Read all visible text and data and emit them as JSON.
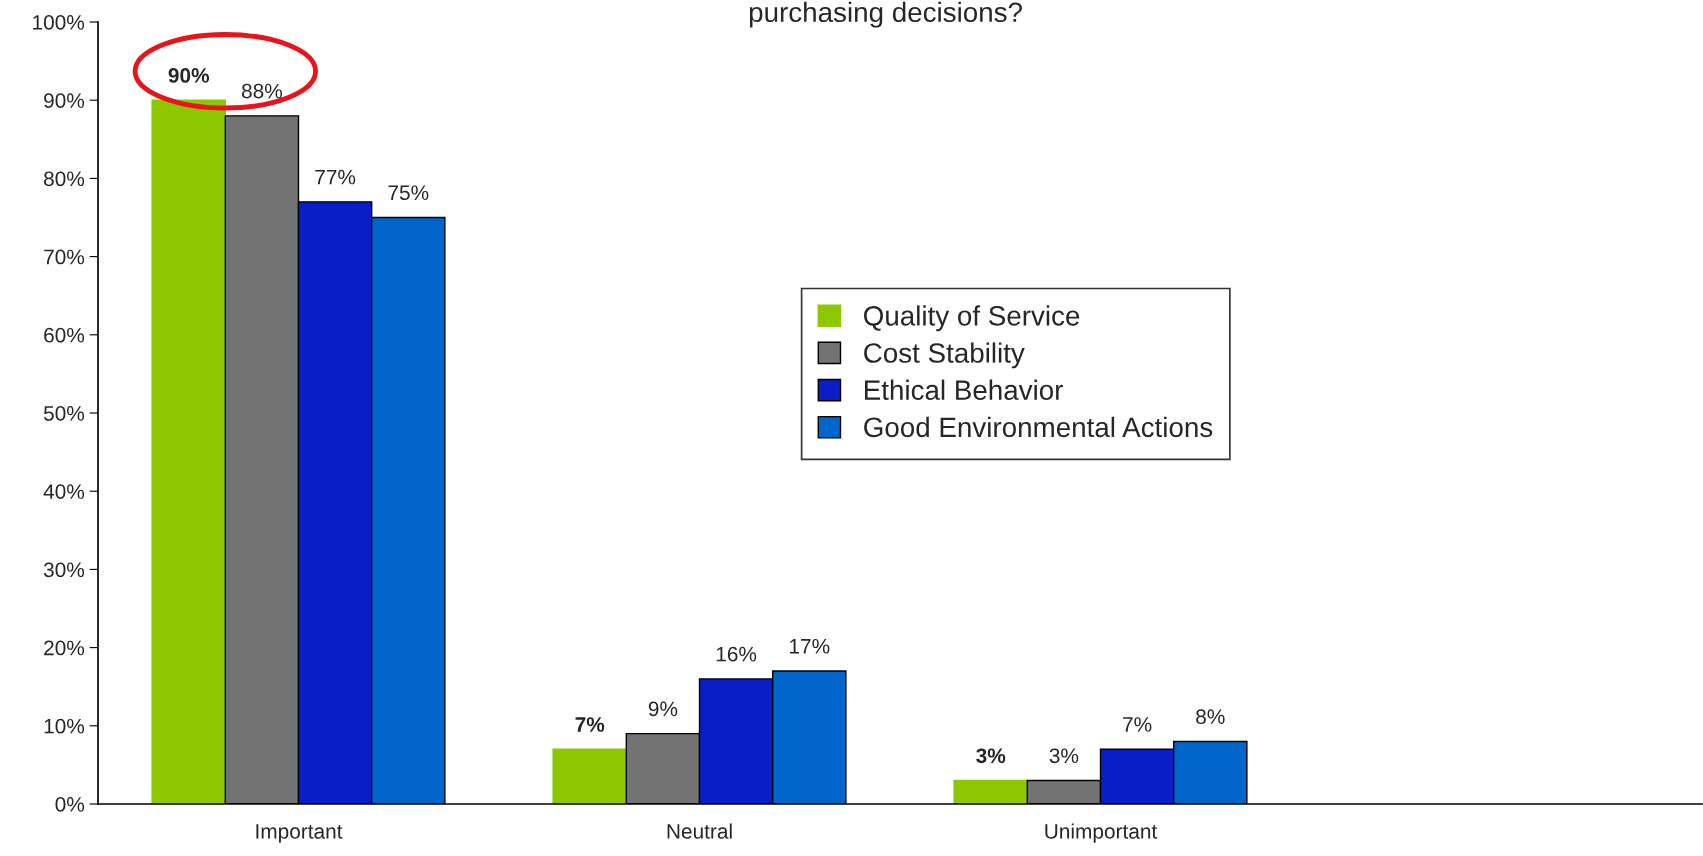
{
  "chart_data": {
    "type": "bar",
    "title": "purchasing decisions?",
    "categories": [
      "Important",
      "Neutral",
      "Unimportant",
      null
    ],
    "series": [
      {
        "name": "Quality of Service",
        "color": "#8dc700",
        "values": [
          90,
          7,
          3,
          null
        ],
        "value_labels": [
          "90%",
          "7%",
          "3%",
          null
        ]
      },
      {
        "name": "Cost Stability",
        "color": "#737373",
        "values": [
          88,
          9,
          3,
          null
        ],
        "value_labels": [
          "88%",
          "9%",
          "3%",
          null
        ]
      },
      {
        "name": "Ethical Behavior",
        "color": "#0a1ec8",
        "values": [
          77,
          16,
          7,
          null
        ],
        "value_labels": [
          "77%",
          "16%",
          "7%",
          null
        ]
      },
      {
        "name": "Good Environmental Actions",
        "color": "#0066cc",
        "values": [
          75,
          17,
          8,
          null
        ],
        "value_labels": [
          "75%",
          "17%",
          "8%",
          null
        ]
      }
    ],
    "ylim": [
      0,
      100
    ],
    "yticks": [
      {
        "value": 0,
        "label": "0%"
      },
      {
        "value": 10,
        "label": "10%"
      },
      {
        "value": 20,
        "label": "20%"
      },
      {
        "value": 30,
        "label": "30%"
      },
      {
        "value": 40,
        "label": "40%"
      },
      {
        "value": 50,
        "label": "50%"
      },
      {
        "value": 60,
        "label": "60%"
      },
      {
        "value": 70,
        "label": "70%"
      },
      {
        "value": 80,
        "label": "80%"
      },
      {
        "value": 90,
        "label": "90%"
      },
      {
        "value": 100,
        "label": "100%"
      }
    ],
    "grid": false,
    "legend": "right"
  }
}
